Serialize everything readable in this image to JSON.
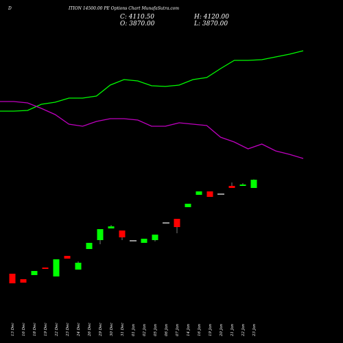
{
  "header": {
    "symbol": "D",
    "title": "ITION 14500.00 PE Options Chart MunafaSutra.com",
    "close_label": "C: 4110.50",
    "high_label": "H: 4120.00",
    "open_label": "O: 3870.00",
    "low_label": "L: 3870.00"
  },
  "chart_data": {
    "type": "candlestick",
    "categories": [
      "13 Dec",
      "16 Dec",
      "18 Dec",
      "19 Dec",
      "22 Dec",
      "23 Dec",
      "24 Dec",
      "26 Dec",
      "29 Dec",
      "30 Dec",
      "31 Dec",
      "01 Jan",
      "02 Jan",
      "05 Jan",
      "06 Jan",
      "07 Jan",
      "14 Jan",
      "16 Jan",
      "19 Jan",
      "20 Jan",
      "21 Jan",
      "22 Jan",
      "23 Jan"
    ],
    "open": [
      1370,
      1210,
      1330,
      1550,
      1290,
      1890,
      1490,
      2090,
      2350,
      2690,
      2630,
      2330,
      2270,
      2350,
      2850,
      2970,
      3310,
      3670,
      3770,
      3690,
      3930,
      3930,
      3870
    ],
    "close": [
      1090,
      1110,
      1450,
      1510,
      1790,
      1810,
      1690,
      2270,
      2670,
      2750,
      2430,
      2330,
      2390,
      2510,
      2850,
      2730,
      3410,
      3770,
      3610,
      3690,
      3870,
      3970,
      4110.5
    ],
    "high": [
      1370,
      1210,
      1450,
      1550,
      1790,
      1890,
      1730,
      2270,
      2670,
      2790,
      2630,
      2330,
      2390,
      2510,
      2850,
      2970,
      3410,
      3770,
      3770,
      3690,
      4030,
      4010,
      4120
    ],
    "low": [
      1090,
      1110,
      1330,
      1510,
      1290,
      1810,
      1490,
      2090,
      2230,
      2690,
      2350,
      2330,
      2270,
      2310,
      2850,
      2550,
      3310,
      3670,
      3610,
      3690,
      3870,
      3930,
      3870
    ],
    "up_color": "#00ff00",
    "down_color": "#ff0000",
    "flat_color": "#ffffff",
    "lines": [
      {
        "color": "#00ff00",
        "values": [
          6110,
          6110,
          6130,
          6310,
          6370,
          6490,
          6490,
          6550,
          6870,
          7030,
          6990,
          6850,
          6830,
          6870,
          7030,
          7090,
          7350,
          7590,
          7590,
          7610,
          7690,
          7770,
          7870
        ]
      },
      {
        "color": "#c000c0",
        "values": [
          6390,
          6390,
          6350,
          6190,
          6010,
          5730,
          5670,
          5810,
          5890,
          5890,
          5850,
          5670,
          5670,
          5770,
          5730,
          5690,
          5350,
          5210,
          5010,
          5150,
          4950,
          4850,
          4730
        ]
      }
    ],
    "ylim": [
      550,
      8150
    ]
  }
}
